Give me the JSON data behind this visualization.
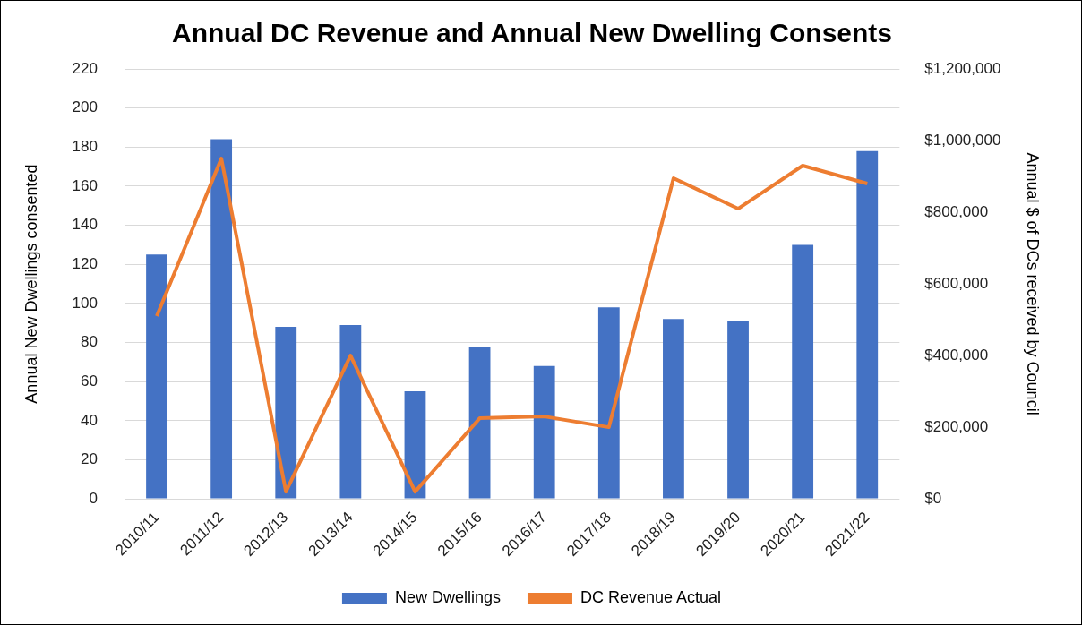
{
  "chart_data": {
    "type": "bar",
    "title": "Annual DC Revenue and Annual New Dwelling Consents",
    "ylabel": "Annual New Dwellings consented",
    "y2label": "Annual $ of DCs received by Council",
    "categories": [
      "2010/11",
      "2011/12",
      "2012/13",
      "2013/14",
      "2014/15",
      "2015/16",
      "2016/17",
      "2017/18",
      "2018/19",
      "2019/20",
      "2020/21",
      "2021/22"
    ],
    "series": [
      {
        "name": "New Dwellings",
        "color": "#4472c4",
        "values": [
          125,
          184,
          88,
          89,
          55,
          78,
          68,
          98,
          92,
          91,
          130,
          178
        ]
      },
      {
        "name": "DC Revenue Actual",
        "type": "line",
        "axis": "y2",
        "color": "#ed7d31",
        "values": [
          510000,
          950000,
          20000,
          400000,
          20000,
          225000,
          230000,
          200000,
          895000,
          810000,
          930000,
          880000
        ]
      }
    ],
    "ylim": [
      0,
      220
    ],
    "yticks": [
      0,
      20,
      40,
      60,
      80,
      100,
      120,
      140,
      160,
      180,
      200,
      220
    ],
    "y2lim": [
      0,
      1200000
    ],
    "y2ticks": [
      {
        "value": 0,
        "label": "$0"
      },
      {
        "value": 200000,
        "label": "$200,000"
      },
      {
        "value": 400000,
        "label": "$400,000"
      },
      {
        "value": 600000,
        "label": "$600,000"
      },
      {
        "value": 800000,
        "label": "$800,000"
      },
      {
        "value": 1000000,
        "label": "$1,000,000"
      },
      {
        "value": 1200000,
        "label": "$1,200,000"
      }
    ],
    "grid": "y",
    "legend": "bottom",
    "marker": "none",
    "line_style": "solid"
  }
}
